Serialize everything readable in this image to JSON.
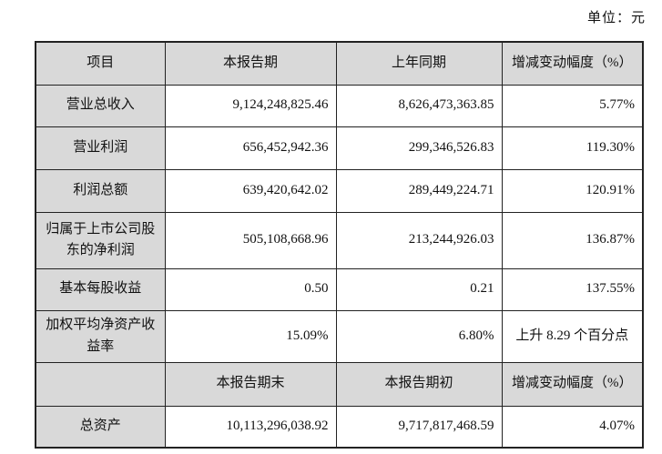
{
  "page": {
    "unit_label": "单位：元"
  },
  "table": {
    "header_period": {
      "item": "项目",
      "current": "本报告期",
      "prior": "上年同期",
      "change": "增减变动幅度（%）"
    },
    "rows_period": [
      {
        "label": "营业总收入",
        "current": "9,124,248,825.46",
        "prior": "8,626,473,363.85",
        "change": "5.77%"
      },
      {
        "label": "营业利润",
        "current": "656,452,942.36",
        "prior": "299,346,526.83",
        "change": "119.30%"
      },
      {
        "label": "利润总额",
        "current": "639,420,642.02",
        "prior": "289,449,224.71",
        "change": "120.91%"
      },
      {
        "label": "归属于上市公司股东的净利润",
        "current": "505,108,668.96",
        "prior": "213,244,926.03",
        "change": "136.87%"
      },
      {
        "label": "基本每股收益",
        "current": "0.50",
        "prior": "0.21",
        "change": "137.55%"
      },
      {
        "label": "加权平均净资产收益率",
        "current": "15.09%",
        "prior": "6.80%",
        "change": "上升 8.29 个百分点"
      }
    ],
    "header_point": {
      "item": "",
      "current": "本报告期末",
      "prior": "本报告期初",
      "change": "增减变动幅度（%）"
    },
    "rows_point": [
      {
        "label": "总资产",
        "current": "10,113,296,038.92",
        "prior": "9,717,817,468.59",
        "change": "4.07%"
      }
    ]
  }
}
